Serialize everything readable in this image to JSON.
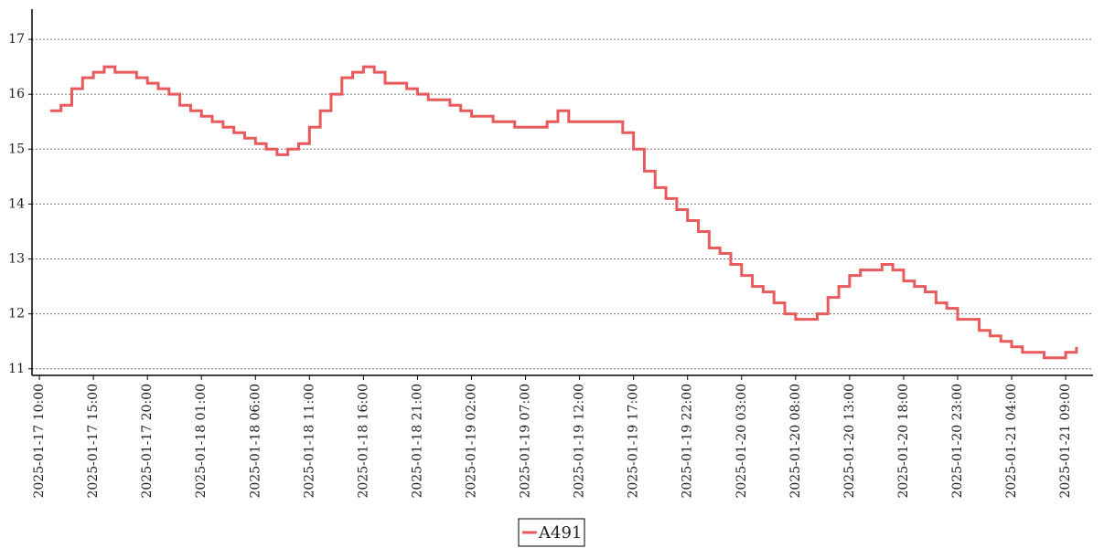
{
  "chart_data": {
    "type": "step",
    "x": [
      "2025-01-17 11:00",
      "2025-01-17 12:00",
      "2025-01-17 13:00",
      "2025-01-17 14:00",
      "2025-01-17 15:00",
      "2025-01-17 16:00",
      "2025-01-17 17:00",
      "2025-01-17 18:00",
      "2025-01-17 19:00",
      "2025-01-17 20:00",
      "2025-01-17 21:00",
      "2025-01-17 22:00",
      "2025-01-17 23:00",
      "2025-01-18 00:00",
      "2025-01-18 01:00",
      "2025-01-18 02:00",
      "2025-01-18 03:00",
      "2025-01-18 04:00",
      "2025-01-18 05:00",
      "2025-01-18 06:00",
      "2025-01-18 07:00",
      "2025-01-18 08:00",
      "2025-01-18 09:00",
      "2025-01-18 10:00",
      "2025-01-18 11:00",
      "2025-01-18 12:00",
      "2025-01-18 13:00",
      "2025-01-18 14:00",
      "2025-01-18 15:00",
      "2025-01-18 16:00",
      "2025-01-18 17:00",
      "2025-01-18 18:00",
      "2025-01-18 19:00",
      "2025-01-18 20:00",
      "2025-01-18 21:00",
      "2025-01-18 22:00",
      "2025-01-18 23:00",
      "2025-01-19 00:00",
      "2025-01-19 01:00",
      "2025-01-19 02:00",
      "2025-01-19 03:00",
      "2025-01-19 04:00",
      "2025-01-19 05:00",
      "2025-01-19 06:00",
      "2025-01-19 07:00",
      "2025-01-19 08:00",
      "2025-01-19 09:00",
      "2025-01-19 10:00",
      "2025-01-19 11:00",
      "2025-01-19 12:00",
      "2025-01-19 13:00",
      "2025-01-19 14:00",
      "2025-01-19 15:00",
      "2025-01-19 16:00",
      "2025-01-19 17:00",
      "2025-01-19 18:00",
      "2025-01-19 19:00",
      "2025-01-19 20:00",
      "2025-01-19 21:00",
      "2025-01-19 22:00",
      "2025-01-19 23:00",
      "2025-01-20 00:00",
      "2025-01-20 01:00",
      "2025-01-20 02:00",
      "2025-01-20 03:00",
      "2025-01-20 04:00",
      "2025-01-20 05:00",
      "2025-01-20 06:00",
      "2025-01-20 07:00",
      "2025-01-20 08:00",
      "2025-01-20 09:00",
      "2025-01-20 10:00",
      "2025-01-20 11:00",
      "2025-01-20 12:00",
      "2025-01-20 13:00",
      "2025-01-20 14:00",
      "2025-01-20 15:00",
      "2025-01-20 16:00",
      "2025-01-20 17:00",
      "2025-01-20 18:00",
      "2025-01-20 19:00",
      "2025-01-20 20:00",
      "2025-01-20 21:00",
      "2025-01-20 22:00",
      "2025-01-20 23:00",
      "2025-01-21 00:00",
      "2025-01-21 01:00",
      "2025-01-21 02:00",
      "2025-01-21 03:00",
      "2025-01-21 04:00",
      "2025-01-21 05:00",
      "2025-01-21 06:00",
      "2025-01-21 07:00",
      "2025-01-21 08:00",
      "2025-01-21 09:00",
      "2025-01-21 10:00"
    ],
    "series": [
      {
        "name": "A491",
        "color": "#e85a5c",
        "values": [
          15.7,
          15.8,
          16.1,
          16.3,
          16.4,
          16.5,
          16.4,
          16.4,
          16.3,
          16.2,
          16.1,
          16.0,
          15.8,
          15.7,
          15.6,
          15.5,
          15.4,
          15.3,
          15.2,
          15.1,
          15.0,
          14.9,
          15.0,
          15.1,
          15.4,
          15.7,
          16.0,
          16.3,
          16.4,
          16.5,
          16.4,
          16.2,
          16.2,
          16.1,
          16.0,
          15.9,
          15.9,
          15.8,
          15.7,
          15.6,
          15.6,
          15.5,
          15.5,
          15.4,
          15.4,
          15.4,
          15.5,
          15.7,
          15.5,
          15.5,
          15.5,
          15.5,
          15.5,
          15.3,
          15.0,
          14.6,
          14.3,
          14.1,
          13.9,
          13.7,
          13.5,
          13.2,
          13.1,
          12.9,
          12.7,
          12.5,
          12.4,
          12.2,
          12.0,
          11.9,
          11.9,
          12.0,
          12.3,
          12.5,
          12.7,
          12.8,
          12.8,
          12.9,
          12.8,
          12.6,
          12.5,
          12.4,
          12.2,
          12.1,
          11.9,
          11.9,
          11.7,
          11.6,
          11.5,
          11.4,
          11.3,
          11.3,
          11.2,
          11.2,
          11.3,
          11.4
        ]
      }
    ],
    "xlim": [
      "2025-01-17 09:19",
      "2025-01-21 11:32"
    ],
    "xticks": [
      "2025-01-17 10:00",
      "2025-01-17 15:00",
      "2025-01-17 20:00",
      "2025-01-18 01:00",
      "2025-01-18 06:00",
      "2025-01-18 11:00",
      "2025-01-18 16:00",
      "2025-01-18 21:00",
      "2025-01-19 02:00",
      "2025-01-19 07:00",
      "2025-01-19 12:00",
      "2025-01-19 17:00",
      "2025-01-19 22:00",
      "2025-01-20 03:00",
      "2025-01-20 08:00",
      "2025-01-20 13:00",
      "2025-01-20 18:00",
      "2025-01-20 23:00",
      "2025-01-21 04:00",
      "2025-01-21 09:00"
    ],
    "ylim": [
      10.88,
      17.55
    ],
    "yticks": [
      11,
      12,
      13,
      14,
      15,
      16,
      17
    ],
    "grid": true,
    "legend": "bottom"
  }
}
